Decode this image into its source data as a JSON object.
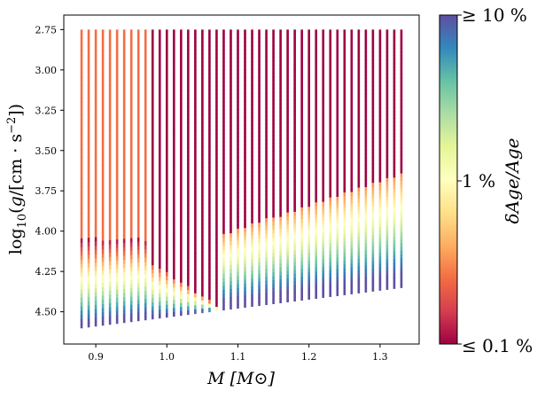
{
  "chart_data": {
    "type": "scatter",
    "title": "",
    "xlabel": "M [M⊙]",
    "ylabel": "log₁₀(g/[cm·s⁻²])",
    "xlim": [
      0.855,
      1.355
    ],
    "ylim": [
      4.7,
      2.66
    ],
    "y_inverted": true,
    "x_ticks": [
      0.9,
      1.0,
      1.1,
      1.2,
      1.3
    ],
    "x_tick_labels": [
      "0.9",
      "1.0",
      "1.1",
      "1.2",
      "1.3"
    ],
    "y_ticks": [
      2.75,
      3.0,
      3.25,
      3.5,
      3.75,
      4.0,
      4.25,
      4.5
    ],
    "y_tick_labels": [
      "2.75",
      "3.00",
      "3.25",
      "3.50",
      "3.75",
      "4.00",
      "4.25",
      "4.50"
    ],
    "mass_grid": {
      "start": 0.88,
      "stop": 1.33,
      "step": 0.01
    },
    "logg_top": 2.75,
    "zams_logg": {
      "at_min_mass": 4.6,
      "at_max_mass": 4.35
    },
    "color_scale": {
      "name": "Spectral",
      "quantity": "δAge/Age",
      "scale": "log",
      "min_label": "≤ 0.1 %",
      "mid_label": "1 %",
      "max_label": "≥ 10 %",
      "stops": [
        "#9e0142",
        "#d53e4f",
        "#f46d43",
        "#fdae61",
        "#fee08b",
        "#ffffbf",
        "#e6f598",
        "#abdda4",
        "#66c2a5",
        "#3288bd",
        "#5e4fa2"
      ]
    }
  },
  "colorbar": {
    "label": "δAge/Age",
    "top_label": "≥ 10 %",
    "mid_label": "1 %",
    "bottom_label": "≤ 0.1 %"
  }
}
